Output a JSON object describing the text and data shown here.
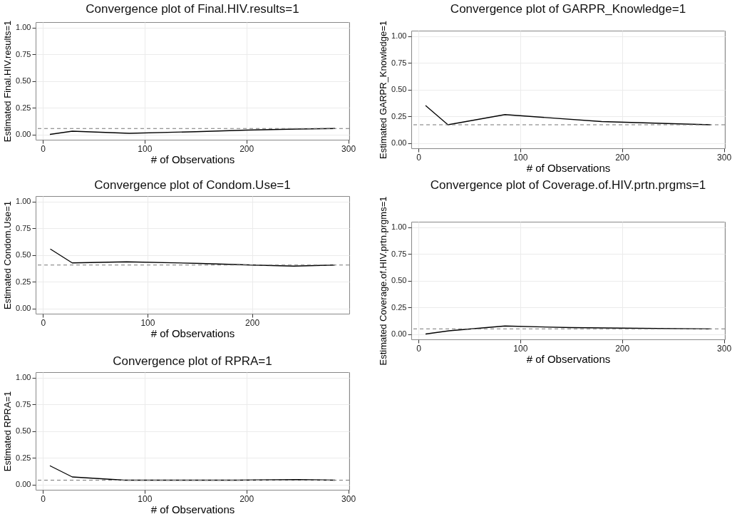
{
  "chart_data": [
    {
      "type": "line",
      "title": "Convergence plot of Final.HIV.results=1",
      "xlabel": "# of Observations",
      "ylabel": "Estimated Final.HIV.results=1",
      "x": [
        7,
        29,
        85,
        150,
        200,
        250,
        287
      ],
      "series": [
        {
          "color": "#000000",
          "values": [
            0,
            0.03,
            0.01,
            0.025,
            0.04,
            0.05,
            0.055
          ]
        }
      ],
      "xlim": [
        -7,
        301
      ],
      "xticks": [
        0,
        100,
        200,
        300
      ],
      "ylim": [
        -0.05,
        1.05
      ],
      "yticks": [
        {
          "value": 0,
          "label": "0.00"
        },
        {
          "value": 0.25,
          "label": "0.25"
        },
        {
          "value": 0.5,
          "label": "0.50"
        },
        {
          "value": 0.75,
          "label": "0.75"
        },
        {
          "value": 1,
          "label": "1.00"
        }
      ],
      "ref_lines": [
        {
          "axis": "y",
          "value": 0.055,
          "color": "#777777",
          "line_style": "dashed"
        }
      ],
      "grid": true,
      "line_style": "solid"
    },
    {
      "type": "line",
      "title": "Convergence plot of GARPR_Knowledge=1",
      "xlabel": "# of Observations",
      "ylabel": "Estimated GARPR_Knowledge=1",
      "x": [
        7,
        29,
        85,
        180,
        250,
        287
      ],
      "series": [
        {
          "color": "#000000",
          "values": [
            0.35,
            0.17,
            0.265,
            0.2,
            0.18,
            0.17
          ]
        }
      ],
      "xlim": [
        -7,
        301
      ],
      "xticks": [
        0,
        100,
        200,
        300
      ],
      "ylim": [
        -0.05,
        1.05
      ],
      "yticks": [
        {
          "value": 0,
          "label": "0.00"
        },
        {
          "value": 0.25,
          "label": "0.25"
        },
        {
          "value": 0.5,
          "label": "0.50"
        },
        {
          "value": 0.75,
          "label": "0.75"
        },
        {
          "value": 1,
          "label": "1.00"
        }
      ],
      "ref_lines": [
        {
          "axis": "y",
          "value": 0.17,
          "color": "#777777",
          "line_style": "dashed"
        }
      ],
      "grid": true,
      "line_style": "solid"
    },
    {
      "type": "line",
      "title": "Convergence plot of Condom.Use=1",
      "xlabel": "# of Observations",
      "ylabel": "Estimated Condom.Use=1",
      "x": [
        7,
        28,
        80,
        150,
        200,
        240,
        279
      ],
      "series": [
        {
          "color": "#000000",
          "values": [
            0.555,
            0.425,
            0.435,
            0.42,
            0.405,
            0.395,
            0.405
          ]
        }
      ],
      "xlim": [
        -7,
        293
      ],
      "xticks": [
        0,
        100,
        200
      ],
      "ylim": [
        -0.05,
        1.05
      ],
      "yticks": [
        {
          "value": 0,
          "label": "0.00"
        },
        {
          "value": 0.25,
          "label": "0.25"
        },
        {
          "value": 0.5,
          "label": "0.50"
        },
        {
          "value": 0.75,
          "label": "0.75"
        },
        {
          "value": 1,
          "label": "1.00"
        }
      ],
      "ref_lines": [
        {
          "axis": "y",
          "value": 0.405,
          "color": "#777777",
          "line_style": "dashed"
        }
      ],
      "grid": true,
      "line_style": "solid"
    },
    {
      "type": "line",
      "title": "Convergence plot of Coverage.of.HIV.prtn.prgms=1",
      "xlabel": "# of Observations",
      "ylabel": "Estimated Coverage.of.HIV.prtn.prgms=1",
      "x": [
        7,
        30,
        85,
        150,
        200,
        287
      ],
      "series": [
        {
          "color": "#000000",
          "values": [
            0,
            0.03,
            0.075,
            0.06,
            0.055,
            0.048
          ]
        }
      ],
      "xlim": [
        -7,
        301
      ],
      "xticks": [
        0,
        100,
        200,
        300
      ],
      "ylim": [
        -0.05,
        1.05
      ],
      "yticks": [
        {
          "value": 0,
          "label": "0.00"
        },
        {
          "value": 0.25,
          "label": "0.25"
        },
        {
          "value": 0.5,
          "label": "0.50"
        },
        {
          "value": 0.75,
          "label": "0.75"
        },
        {
          "value": 1,
          "label": "1.00"
        }
      ],
      "ref_lines": [
        {
          "axis": "y",
          "value": 0.048,
          "color": "#777777",
          "line_style": "dashed"
        }
      ],
      "grid": true,
      "line_style": "solid"
    },
    {
      "type": "line",
      "title": "Convergence plot of RPRA=1",
      "xlabel": "# of Observations",
      "ylabel": "Estimated RPRA=1",
      "x": [
        7,
        29,
        80,
        190,
        250,
        287
      ],
      "series": [
        {
          "color": "#000000",
          "values": [
            0.175,
            0.07,
            0.04,
            0.04,
            0.045,
            0.04
          ]
        }
      ],
      "xlim": [
        -7,
        301
      ],
      "xticks": [
        0,
        100,
        200,
        300
      ],
      "ylim": [
        -0.05,
        1.05
      ],
      "yticks": [
        {
          "value": 0,
          "label": "0.00"
        },
        {
          "value": 0.25,
          "label": "0.25"
        },
        {
          "value": 0.5,
          "label": "0.50"
        },
        {
          "value": 0.75,
          "label": "0.75"
        },
        {
          "value": 1,
          "label": "1.00"
        }
      ],
      "ref_lines": [
        {
          "axis": "y",
          "value": 0.04,
          "color": "#777777",
          "line_style": "dashed"
        }
      ],
      "grid": true,
      "line_style": "solid"
    }
  ]
}
